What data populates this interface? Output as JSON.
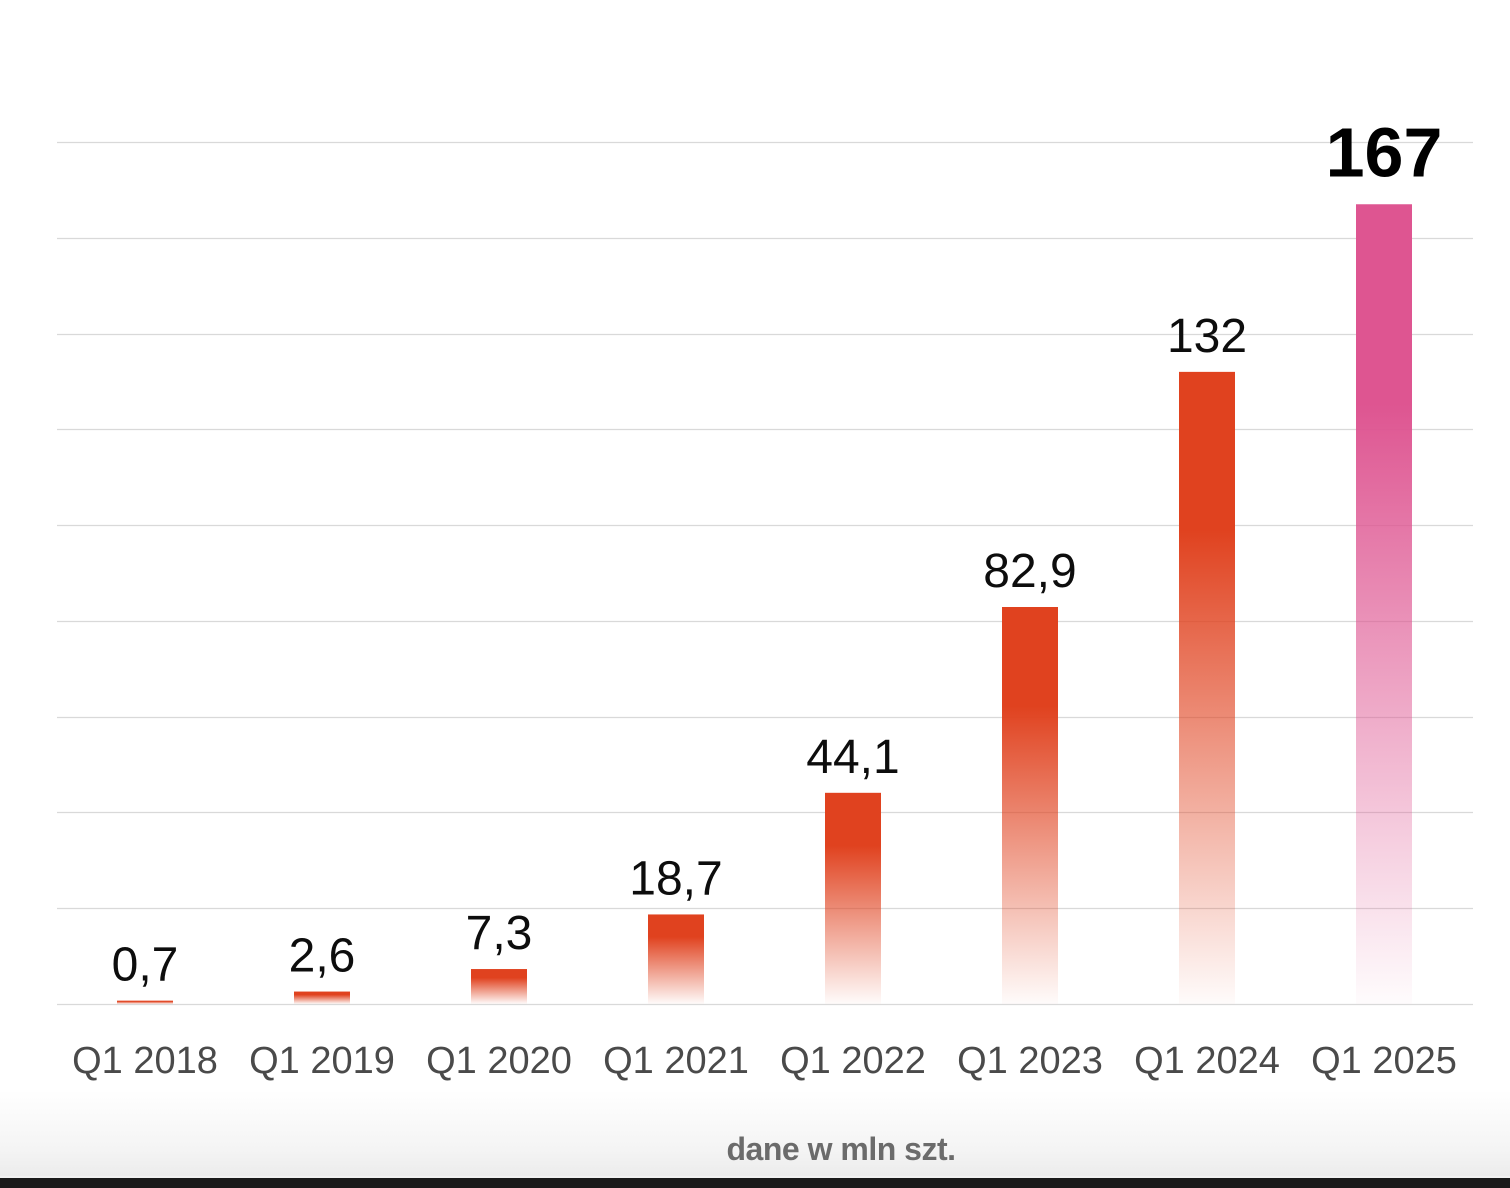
{
  "chart_data": {
    "type": "bar",
    "categories": [
      "Q1 2018",
      "Q1 2019",
      "Q1 2020",
      "Q1 2021",
      "Q1 2022",
      "Q1 2023",
      "Q1 2024",
      "Q1 2025"
    ],
    "values": [
      0.7,
      2.6,
      7.3,
      18.7,
      44.1,
      82.9,
      132,
      167
    ],
    "data_labels": [
      "0,7",
      "2,6",
      "7,3",
      "18,7",
      "44,1",
      "82,9",
      "132",
      "167"
    ],
    "highlight_index": 7,
    "ylim": [
      0,
      180
    ],
    "grid": true,
    "unit_note": "dane w mln szt.",
    "colors": {
      "bar": "#e0421f",
      "highlight_bar": "#de5591",
      "grid": "#d9d9d9",
      "tick_text": "#4a4a4a",
      "value_text": "#0d0d0d"
    }
  }
}
